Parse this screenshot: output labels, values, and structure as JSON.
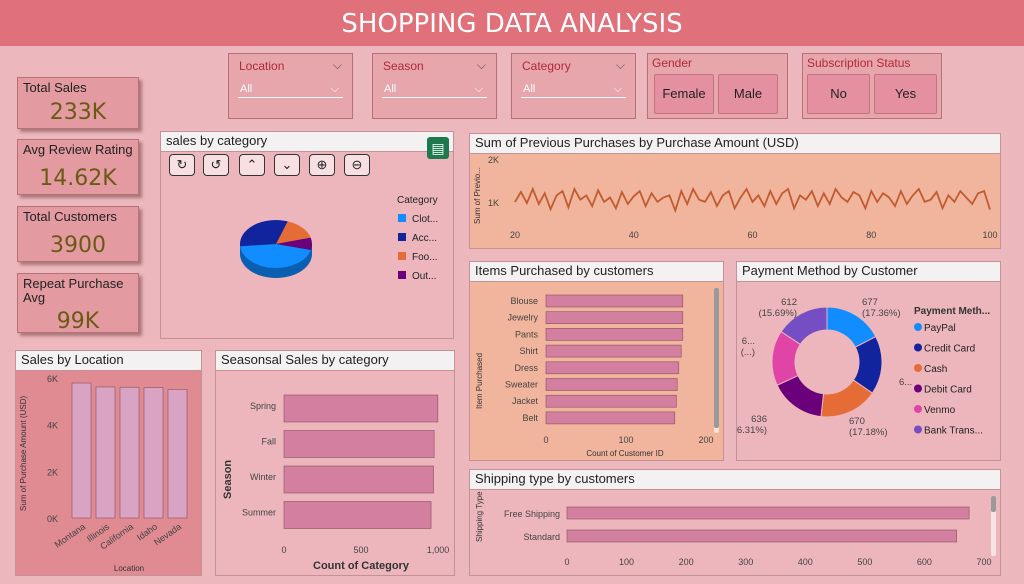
{
  "title": "SHOPPING DATA ANALYSIS",
  "kpis": [
    {
      "label": "Total Sales",
      "value": "233K"
    },
    {
      "label": "Avg Review Rating",
      "value": "14.62K"
    },
    {
      "label": "Total Customers",
      "value": "3900"
    },
    {
      "label": "Repeat Purchase Avg",
      "value": "99K"
    }
  ],
  "slicers": {
    "location": {
      "title": "Location",
      "value": "All"
    },
    "season": {
      "title": "Season",
      "value": "All"
    },
    "category": {
      "title": "Category",
      "value": "All"
    },
    "gender": {
      "title": "Gender",
      "options": [
        "Female",
        "Male"
      ]
    },
    "subscription": {
      "title": "Subscription Status",
      "options": [
        "No",
        "Yes"
      ]
    }
  },
  "toolbar_icons": [
    "refresh-icon",
    "undo-icon",
    "drill-up-icon",
    "drill-down-icon",
    "zoom-in-icon",
    "zoom-out-icon",
    "focus-mode-icon"
  ],
  "colors": {
    "clothing": "#118dff",
    "accessories": "#12239e",
    "footwear": "#e66c37",
    "outerwear": "#6b007b",
    "bar_pink": "#d27fa0",
    "line": "#c25b2f"
  },
  "chart_data": [
    {
      "id": "sales_by_category",
      "title": "sales by category",
      "type": "pie",
      "legend_title": "Category",
      "legend": [
        "Clot...",
        "Acc...",
        "Foo...",
        "Out..."
      ],
      "values": [
        1737,
        1240,
        599,
        324
      ]
    },
    {
      "id": "prev_purchases",
      "title": "Sum of Previous Purchases by Purchase Amount (USD)",
      "type": "line",
      "ylabel": "Sum of Previo...",
      "yticks": [
        "2K",
        "1K"
      ],
      "xticks": [
        "20",
        "40",
        "60",
        "80",
        "100"
      ],
      "ylim": [
        0,
        2000
      ],
      "xlim": [
        20,
        100
      ],
      "values": [
        1050,
        1280,
        1020,
        1350,
        1000,
        1250,
        880,
        1200,
        1300,
        920,
        1350,
        1100,
        1200,
        950,
        1320,
        1050,
        1150,
        900,
        1280,
        1000,
        1180,
        1300,
        950,
        1250,
        1050,
        1150,
        1200,
        850,
        1300,
        1000,
        1350,
        1100,
        1050,
        1280,
        950,
        1200,
        1300,
        900,
        1150,
        1350,
        1050,
        1200,
        950,
        1300,
        1000,
        1250,
        1350,
        900,
        1200,
        1100,
        1300,
        950,
        1250,
        1000,
        1350,
        1150,
        1050,
        1280,
        1200,
        900,
        1300,
        1050,
        1250,
        1150,
        950,
        1300,
        1000,
        1200,
        1350,
        1050,
        1100,
        1280,
        900,
        1200,
        1050,
        1300,
        1150,
        1000,
        1250,
        1300,
        870
      ]
    },
    {
      "id": "items_purchased",
      "title": "Items Purchased by customers",
      "type": "bar",
      "orientation": "horizontal",
      "ylabel": "Item Purchased",
      "xlabel": "Count of Customer ID",
      "xticks": [
        "0",
        "100",
        "200"
      ],
      "xlim": [
        0,
        200
      ],
      "categories": [
        "Blouse",
        "Jewelry",
        "Pants",
        "Shirt",
        "Dress",
        "Sweater",
        "Jacket",
        "Belt"
      ],
      "values": [
        171,
        171,
        171,
        169,
        166,
        164,
        163,
        161
      ]
    },
    {
      "id": "payment_method",
      "title": "Payment Method by Customer",
      "type": "pie",
      "donut": true,
      "legend_title": "Payment Meth...",
      "categories": [
        "PayPal",
        "Credit Card",
        "Cash",
        "Debit Card",
        "Venmo",
        "Bank Trans..."
      ],
      "legend_labels": [
        "PayPal",
        "Credit Card",
        "Cash",
        "Debit Card",
        "Venmo",
        "Bank Trans..."
      ],
      "values": [
        677,
        671,
        670,
        636,
        634,
        612
      ],
      "labels": [
        {
          "count": "677",
          "pct": "(17.36%)"
        },
        {
          "count": "6...",
          "pct": ""
        },
        {
          "count": "670",
          "pct": "(17.18%)"
        },
        {
          "count": "636",
          "pct": "(16.31%)"
        },
        {
          "count": "6...",
          "pct": "(...)"
        },
        {
          "count": "612",
          "pct": "(15.69%)"
        }
      ],
      "colors": [
        "#118dff",
        "#12239e",
        "#e66c37",
        "#6b007b",
        "#e044a7",
        "#744ec2"
      ]
    },
    {
      "id": "sales_by_location",
      "title": "Sales by Location",
      "type": "bar",
      "ylabel": "Sum of Purchase Amount (USD)",
      "xlabel": "Location",
      "yticks": [
        "6K",
        "4K",
        "2K",
        "0K"
      ],
      "ylim": [
        0,
        6000
      ],
      "categories": [
        "Montana",
        "Illinois",
        "California",
        "Idaho",
        "Nevada"
      ],
      "values": [
        5784,
        5617,
        5605,
        5587,
        5514
      ]
    },
    {
      "id": "seasonal_sales",
      "title": "Seasonsal Sales by category",
      "type": "bar",
      "orientation": "horizontal",
      "ylabel": "Season",
      "xlabel": "Count of Category",
      "xticks": [
        "0",
        "500",
        "1,000"
      ],
      "xlim": [
        0,
        1000
      ],
      "categories": [
        "Spring",
        "Fall",
        "Winter",
        "Summer"
      ],
      "values": [
        999,
        975,
        971,
        955
      ]
    },
    {
      "id": "shipping_type",
      "title": "Shipping type by customers",
      "type": "bar",
      "orientation": "horizontal",
      "ylabel": "Shipping Type",
      "xticks": [
        "0",
        "100",
        "200",
        "300",
        "400",
        "500",
        "600",
        "700"
      ],
      "xlim": [
        0,
        700
      ],
      "categories": [
        "Free Shipping",
        "Standard"
      ],
      "values": [
        675,
        654
      ]
    }
  ]
}
